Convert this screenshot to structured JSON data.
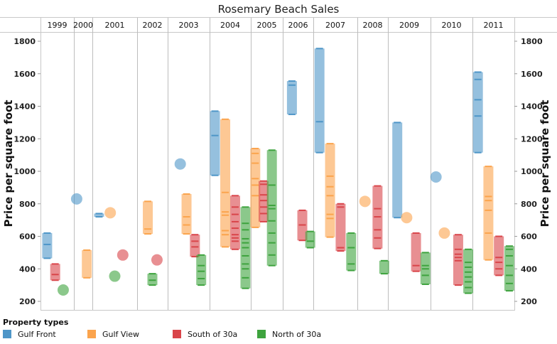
{
  "chart_data": {
    "type": "range-bar",
    "title": "Rosemary Beach Sales",
    "ylabel": "Price per square foot",
    "ylim": [
      150,
      1880
    ],
    "yticks": [
      200,
      400,
      600,
      800,
      1000,
      1200,
      1400,
      1600,
      1800
    ],
    "grid": false,
    "legend": {
      "title": "Property types",
      "position": "bottom-left"
    },
    "categories": [
      "1999",
      "2000",
      "2001",
      "2002",
      "2003",
      "2004",
      "2005",
      "2006",
      "2007",
      "2008",
      "2009",
      "2010",
      "2011"
    ],
    "series": [
      {
        "name": "Gulf Front",
        "color": "#4e96c8",
        "sales": [
          [
            465,
            550,
            620
          ],
          [
            830
          ],
          [
            720,
            740
          ],
          [],
          [
            1045
          ],
          [
            975,
            1220,
            1370
          ],
          [],
          [
            1350,
            1530,
            1555
          ],
          [
            1115,
            1305,
            1755
          ],
          [],
          [
            715,
            1300
          ],
          [
            965
          ],
          [
            1115,
            1340,
            1440,
            1565,
            1610
          ]
        ]
      },
      {
        "name": "Gulf View",
        "color": "#fba44d",
        "sales": [
          [],
          [
            345,
            515
          ],
          [
            745
          ],
          [
            615,
            645,
            815
          ],
          [
            615,
            670,
            720,
            860
          ],
          [
            535,
            610,
            635,
            730,
            750,
            870,
            1320
          ],
          [
            655,
            850,
            915,
            955,
            1050,
            1110,
            1140
          ],
          [],
          [
            595,
            710,
            735,
            850,
            905,
            970,
            1170
          ],
          [
            815
          ],
          [
            715
          ],
          [
            620
          ],
          [
            455,
            620,
            760,
            820,
            845,
            1030
          ]
        ]
      },
      {
        "name": "South of 30a",
        "color": "#d9454a",
        "sales": [
          [
            330,
            365,
            430
          ],
          [],
          [
            485
          ],
          [
            455
          ],
          [
            475,
            535,
            570,
            610
          ],
          [
            520,
            570,
            590,
            610,
            650,
            690,
            735,
            780,
            850
          ],
          [
            690,
            740,
            780,
            820,
            855,
            920,
            940
          ],
          [
            575,
            670,
            760
          ],
          [
            510,
            530,
            780,
            800
          ],
          [
            525,
            590,
            640,
            720,
            770,
            910
          ],
          [
            385,
            420,
            620
          ],
          [
            300,
            450,
            470,
            490,
            520,
            610
          ],
          [
            360,
            400,
            440,
            470,
            600
          ]
        ]
      },
      {
        "name": "North of 30a",
        "color": "#3ea33e",
        "sales": [
          [
            270
          ],
          [],
          [
            355
          ],
          [
            300,
            330,
            370
          ],
          [
            300,
            340,
            385,
            420,
            485
          ],
          [
            280,
            345,
            400,
            430,
            480,
            530,
            560,
            585,
            640,
            680,
            780
          ],
          [
            420,
            485,
            560,
            620,
            695,
            770,
            790,
            915,
            1130
          ],
          [
            530,
            570,
            630
          ],
          [
            390,
            430,
            530,
            620
          ],
          [
            370,
            450
          ],
          [
            305,
            360,
            400,
            420,
            500
          ],
          [
            250,
            285,
            320,
            350,
            380,
            410,
            440,
            520
          ],
          [
            265,
            310,
            360,
            420,
            480,
            520,
            540
          ]
        ]
      }
    ]
  }
}
